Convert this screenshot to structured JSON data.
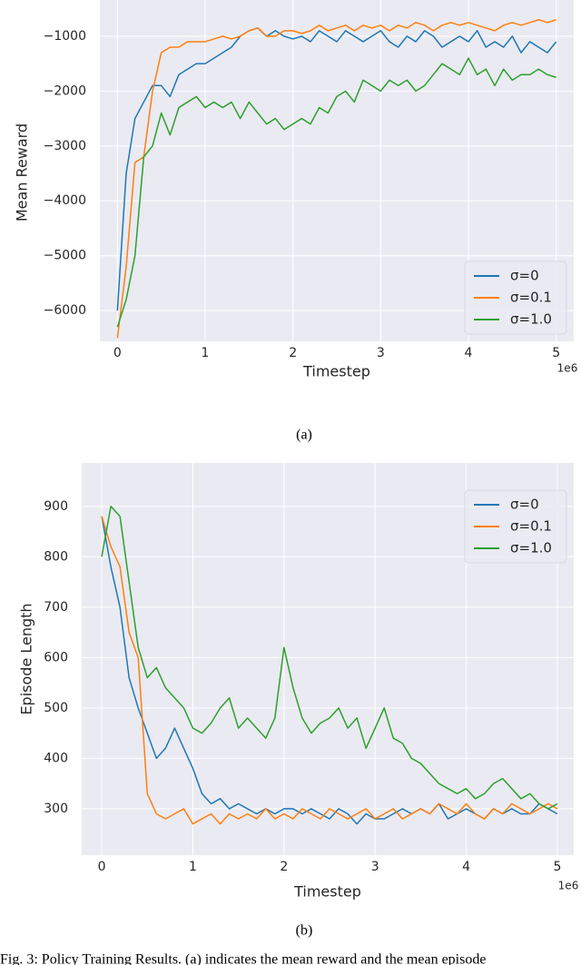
{
  "chart_data": [
    {
      "type": "line",
      "xlabel": "Timestep",
      "ylabel": "Mean Reward",
      "x_offset_label": "1e6",
      "x": [
        0,
        0.1,
        0.2,
        0.3,
        0.4,
        0.5,
        0.6,
        0.7,
        0.8,
        0.9,
        1.0,
        1.1,
        1.2,
        1.3,
        1.4,
        1.5,
        1.6,
        1.7,
        1.8,
        1.9,
        2.0,
        2.1,
        2.2,
        2.3,
        2.4,
        2.5,
        2.6,
        2.7,
        2.8,
        2.9,
        3.0,
        3.1,
        3.2,
        3.3,
        3.4,
        3.5,
        3.6,
        3.7,
        3.8,
        3.9,
        4.0,
        4.1,
        4.2,
        4.3,
        4.4,
        4.5,
        4.6,
        4.7,
        4.8,
        4.9,
        5.0
      ],
      "series": [
        {
          "name": "σ=0",
          "color": "#1f77b4",
          "values": [
            -6000,
            -3500,
            -2500,
            -2200,
            -1900,
            -1900,
            -2100,
            -1700,
            -1600,
            -1500,
            -1500,
            -1400,
            -1300,
            -1200,
            -1000,
            -900,
            -850,
            -1000,
            -900,
            -1000,
            -1050,
            -1000,
            -1100,
            -900,
            -1000,
            -1100,
            -900,
            -1000,
            -1100,
            -1000,
            -900,
            -1100,
            -1200,
            -1000,
            -1100,
            -900,
            -1000,
            -1200,
            -1100,
            -1000,
            -1100,
            -900,
            -1200,
            -1100,
            -1200,
            -1000,
            -1300,
            -1100,
            -1200,
            -1300,
            -1100
          ]
        },
        {
          "name": "σ=0.1",
          "color": "#ff7f0e",
          "values": [
            -6500,
            -5200,
            -3300,
            -3200,
            -2000,
            -1300,
            -1200,
            -1200,
            -1100,
            -1100,
            -1100,
            -1050,
            -1000,
            -1050,
            -1000,
            -900,
            -850,
            -1000,
            -1000,
            -900,
            -900,
            -950,
            -900,
            -800,
            -900,
            -850,
            -800,
            -900,
            -800,
            -850,
            -800,
            -900,
            -800,
            -850,
            -750,
            -800,
            -900,
            -800,
            -750,
            -800,
            -750,
            -800,
            -850,
            -900,
            -800,
            -750,
            -800,
            -750,
            -700,
            -750,
            -700
          ]
        },
        {
          "name": "σ=1.0",
          "color": "#2ca02c",
          "values": [
            -6300,
            -5800,
            -5000,
            -3200,
            -3000,
            -2400,
            -2800,
            -2300,
            -2200,
            -2100,
            -2300,
            -2200,
            -2300,
            -2200,
            -2500,
            -2200,
            -2400,
            -2600,
            -2500,
            -2700,
            -2600,
            -2500,
            -2600,
            -2300,
            -2400,
            -2100,
            -2000,
            -2200,
            -1800,
            -1900,
            -2000,
            -1800,
            -1900,
            -1800,
            -2000,
            -1900,
            -1700,
            -1500,
            -1600,
            -1700,
            -1400,
            -1700,
            -1600,
            -1900,
            -1600,
            -1800,
            -1700,
            -1700,
            -1600,
            -1700,
            -1750
          ]
        }
      ],
      "xlim": [
        -0.2,
        5.2
      ],
      "xticks": [
        0,
        1,
        2,
        3,
        4,
        5
      ],
      "ylim": [
        -6560,
        -340
      ],
      "yticks": [
        {
          "value": -6000,
          "label": "−6000"
        },
        {
          "value": -5000,
          "label": "−5000"
        },
        {
          "value": -4000,
          "label": "−4000"
        },
        {
          "value": -3000,
          "label": "−3000"
        },
        {
          "value": -2000,
          "label": "−2000"
        },
        {
          "value": -1000,
          "label": "−1000"
        }
      ],
      "grid": true,
      "legend": "lower right"
    },
    {
      "type": "line",
      "xlabel": "Timestep",
      "ylabel": "Episode Length",
      "x_offset_label": "1e6",
      "x": [
        0,
        0.1,
        0.2,
        0.3,
        0.4,
        0.5,
        0.6,
        0.7,
        0.8,
        0.9,
        1.0,
        1.1,
        1.2,
        1.3,
        1.4,
        1.5,
        1.6,
        1.7,
        1.8,
        1.9,
        2.0,
        2.1,
        2.2,
        2.3,
        2.4,
        2.5,
        2.6,
        2.7,
        2.8,
        2.9,
        3.0,
        3.1,
        3.2,
        3.3,
        3.4,
        3.5,
        3.6,
        3.7,
        3.8,
        3.9,
        4.0,
        4.1,
        4.2,
        4.3,
        4.4,
        4.5,
        4.6,
        4.7,
        4.8,
        4.9,
        5.0
      ],
      "series": [
        {
          "name": "σ=0",
          "color": "#1f77b4",
          "values": [
            880,
            780,
            700,
            560,
            500,
            450,
            400,
            420,
            460,
            420,
            380,
            330,
            310,
            320,
            300,
            310,
            300,
            290,
            300,
            290,
            300,
            300,
            290,
            300,
            290,
            280,
            300,
            290,
            270,
            290,
            280,
            280,
            290,
            300,
            290,
            300,
            290,
            310,
            280,
            290,
            300,
            290,
            280,
            300,
            290,
            300,
            290,
            290,
            310,
            300,
            290
          ]
        },
        {
          "name": "σ=0.1",
          "color": "#ff7f0e",
          "values": [
            880,
            820,
            780,
            650,
            600,
            330,
            290,
            280,
            290,
            300,
            270,
            280,
            290,
            270,
            290,
            280,
            290,
            280,
            300,
            280,
            290,
            280,
            300,
            290,
            280,
            300,
            290,
            280,
            290,
            300,
            280,
            290,
            300,
            280,
            290,
            300,
            290,
            310,
            300,
            290,
            310,
            290,
            280,
            300,
            290,
            310,
            300,
            290,
            300,
            310,
            300
          ]
        },
        {
          "name": "σ=1.0",
          "color": "#2ca02c",
          "values": [
            800,
            900,
            880,
            750,
            620,
            560,
            580,
            540,
            520,
            500,
            460,
            450,
            470,
            500,
            520,
            460,
            480,
            460,
            440,
            480,
            620,
            540,
            480,
            450,
            470,
            480,
            500,
            460,
            480,
            420,
            460,
            500,
            440,
            430,
            400,
            390,
            370,
            350,
            340,
            330,
            340,
            320,
            330,
            350,
            360,
            340,
            320,
            330,
            310,
            300,
            310
          ]
        }
      ],
      "xlim": [
        -0.22,
        5.18
      ],
      "xticks": [
        0,
        1,
        2,
        3,
        4,
        5
      ],
      "ylim": [
        208,
        986
      ],
      "yticks": [
        300,
        400,
        500,
        600,
        700,
        800,
        900
      ],
      "grid": true,
      "legend": "upper right"
    }
  ],
  "captions": [
    "(a)",
    "(b)"
  ],
  "figure_caption": "Fig. 3: Policy Training Results. (a) indicates the mean reward and the mean episode"
}
